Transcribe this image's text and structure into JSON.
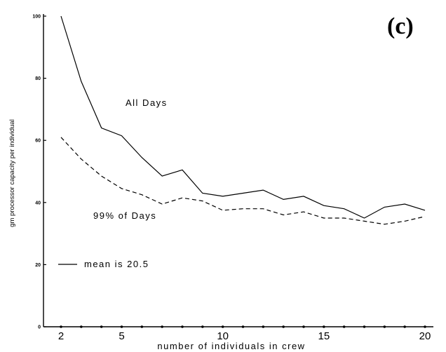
{
  "panel_label": "(c)",
  "chart_data": {
    "type": "line",
    "title": "",
    "xlabel": "number of individuals in crew",
    "ylabel": "gm processor capacity per individual",
    "xlim": [
      1,
      21
    ],
    "ylim": [
      0,
      100
    ],
    "x_ticks": [
      2,
      5,
      10,
      15,
      20
    ],
    "y_ticks": [
      0,
      20,
      40,
      60,
      80,
      100
    ],
    "x": [
      2,
      3,
      4,
      5,
      6,
      7,
      8,
      9,
      10,
      11,
      12,
      13,
      14,
      15,
      16,
      17,
      18,
      19,
      20
    ],
    "series": [
      {
        "name": "All Days",
        "style": "solid",
        "values": [
          100,
          79,
          64,
          61.5,
          54.5,
          48.5,
          50.5,
          43,
          42,
          43,
          44,
          41,
          42,
          39,
          38,
          35,
          38.5,
          39.5,
          37.5
        ]
      },
      {
        "name": "99% of Days",
        "style": "dashed",
        "values": [
          61,
          54,
          48.5,
          44.5,
          42.5,
          39.5,
          41.5,
          40.5,
          37.5,
          38,
          38,
          36,
          37,
          35,
          35,
          34,
          33,
          34,
          35.5
        ]
      }
    ],
    "annotations": [
      "mean is 20.5"
    ]
  }
}
